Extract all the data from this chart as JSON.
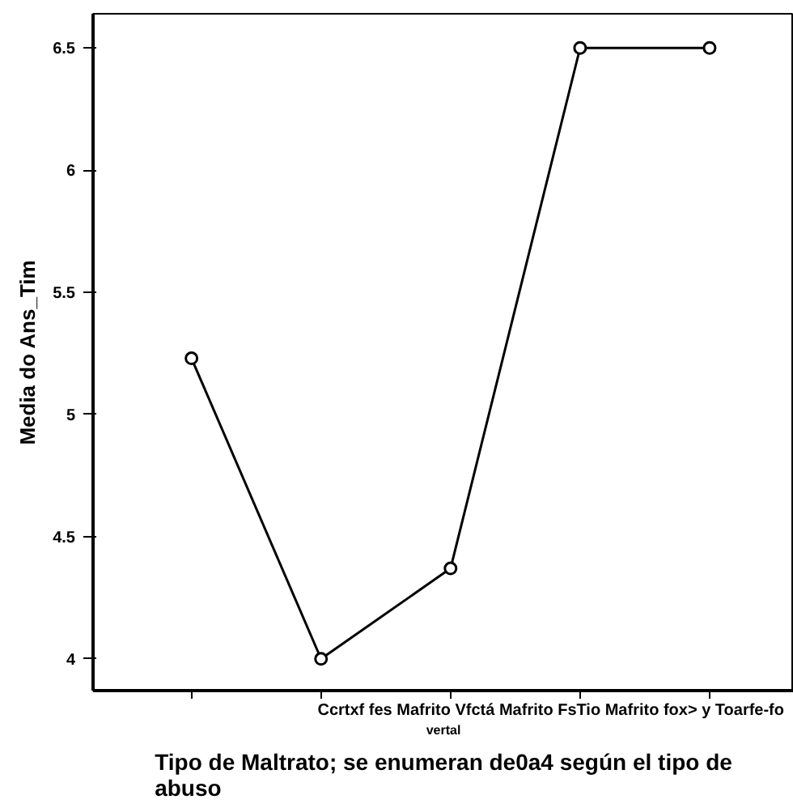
{
  "chart_data": {
    "type": "line",
    "xlabel": "Tipo de Maltrato; se enumeran de0a4 según el tipo de abuso",
    "ylabel": "Media do Ans_Tim",
    "categories": [
      null,
      null,
      null,
      null,
      null
    ],
    "series": [
      {
        "color": "#000000",
        "values": [
          5.23,
          4.0,
          4.37,
          6.5,
          6.5
        ]
      }
    ],
    "ylim": [
      3.87,
      6.64
    ],
    "yticks": [
      4,
      4.5,
      5,
      5.5,
      6,
      6.5
    ],
    "grid": false,
    "marker": "circle",
    "line_style": "solid",
    "annotations": [
      "Ccrtxf fes Mafrito Vfctá Mafrito FsTio Mafrito fox> y Toarfe-fo",
      "vertal"
    ]
  }
}
